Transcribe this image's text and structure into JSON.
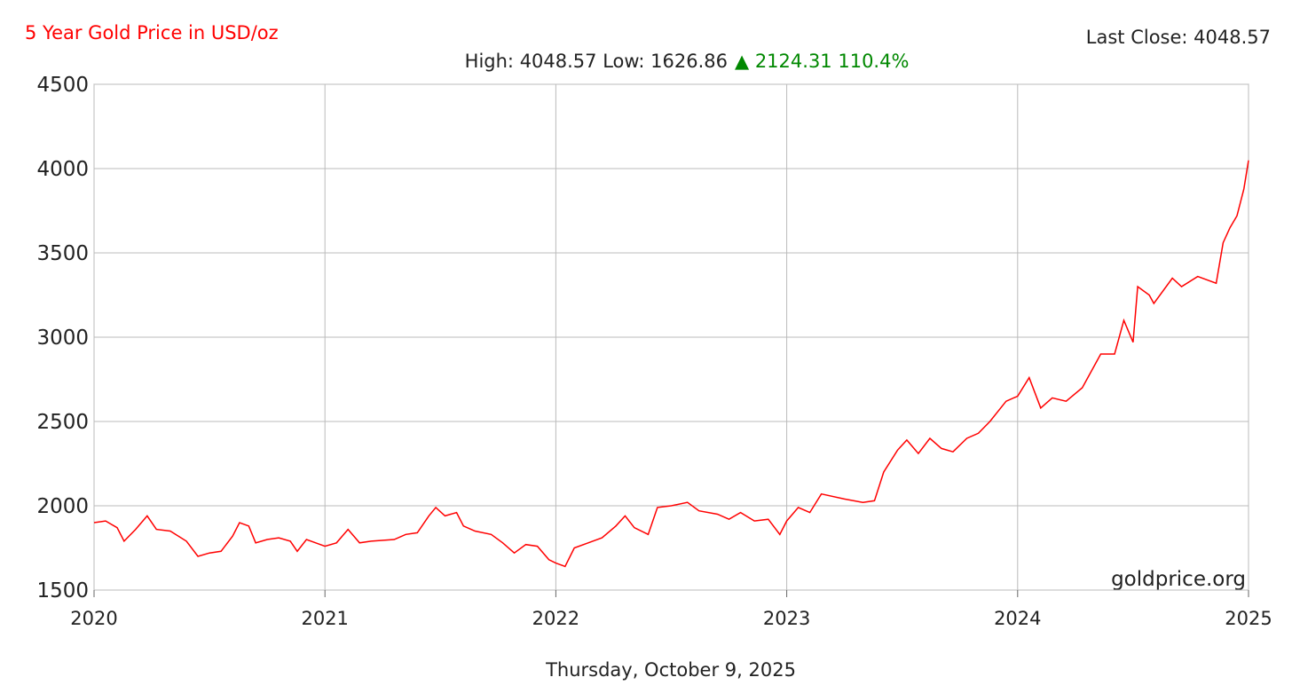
{
  "chart_data": {
    "type": "line",
    "title": "5 Year Gold Price in USD/oz",
    "last_close": "Last Close: 4048.57",
    "stats": "High: 4048.57 Low: 1626.86",
    "change": "▲ 2124.31 110.4%",
    "watermark": "goldprice.org",
    "date_label": "Thursday, October 9, 2025",
    "xlim": [
      2020,
      2025
    ],
    "xticks": [
      2020,
      2021,
      2022,
      2023,
      2024,
      2025
    ],
    "ylim": [
      1500,
      4500
    ],
    "yticks": [
      1500,
      2000,
      2500,
      3000,
      3500,
      4000,
      4500
    ],
    "grid": true,
    "series": [
      {
        "name": "Gold Price",
        "color": "#ff0000",
        "x": [
          2020.0,
          2020.05,
          2020.1,
          2020.13,
          2020.18,
          2020.23,
          2020.27,
          2020.33,
          2020.4,
          2020.45,
          2020.5,
          2020.55,
          2020.6,
          2020.63,
          2020.67,
          2020.7,
          2020.75,
          2020.8,
          2020.85,
          2020.88,
          2020.92,
          2020.96,
          2021.0,
          2021.05,
          2021.1,
          2021.15,
          2021.2,
          2021.3,
          2021.35,
          2021.4,
          2021.45,
          2021.48,
          2021.52,
          2021.57,
          2021.6,
          2021.65,
          2021.72,
          2021.77,
          2021.82,
          2021.87,
          2021.92,
          2021.97,
          2022.0,
          2022.04,
          2022.08,
          2022.14,
          2022.2,
          2022.26,
          2022.3,
          2022.34,
          2022.4,
          2022.44,
          2022.5,
          2022.57,
          2022.62,
          2022.7,
          2022.75,
          2022.8,
          2022.86,
          2022.92,
          2022.97,
          2023.0,
          2023.05,
          2023.1,
          2023.15,
          2023.25,
          2023.33,
          2023.38,
          2023.42,
          2023.48,
          2023.52,
          2023.57,
          2023.62,
          2023.67,
          2023.72,
          2023.78,
          2023.83,
          2023.88,
          2023.95,
          2024.0,
          2024.05,
          2024.1,
          2024.15,
          2024.21,
          2024.28,
          2024.36,
          2024.42,
          2024.46,
          2024.5,
          2024.52,
          2024.57,
          2024.59,
          2024.67,
          2024.71,
          2024.78,
          2024.86,
          2024.89,
          2024.92,
          2024.95,
          2024.98,
          2025.0
        ],
        "values": [
          1900,
          1910,
          1870,
          1790,
          1860,
          1940,
          1860,
          1850,
          1790,
          1700,
          1720,
          1730,
          1820,
          1900,
          1880,
          1780,
          1800,
          1810,
          1790,
          1730,
          1800,
          1780,
          1760,
          1780,
          1860,
          1780,
          1790,
          1800,
          1830,
          1840,
          1940,
          1990,
          1940,
          1960,
          1880,
          1850,
          1830,
          1780,
          1720,
          1770,
          1760,
          1680,
          1660,
          1640,
          1750,
          1780,
          1810,
          1880,
          1940,
          1870,
          1830,
          1990,
          2000,
          2020,
          1970,
          1950,
          1920,
          1960,
          1910,
          1920,
          1830,
          1910,
          1990,
          1960,
          2070,
          2040,
          2020,
          2030,
          2200,
          2330,
          2390,
          2310,
          2400,
          2340,
          2320,
          2400,
          2430,
          2500,
          2620,
          2650,
          2760,
          2580,
          2640,
          2620,
          2700,
          2900,
          2900,
          3100,
          2970,
          3300,
          3250,
          3200,
          3350,
          3300,
          3360,
          3320,
          3560,
          3650,
          3720,
          3880,
          4048.57
        ]
      }
    ]
  }
}
